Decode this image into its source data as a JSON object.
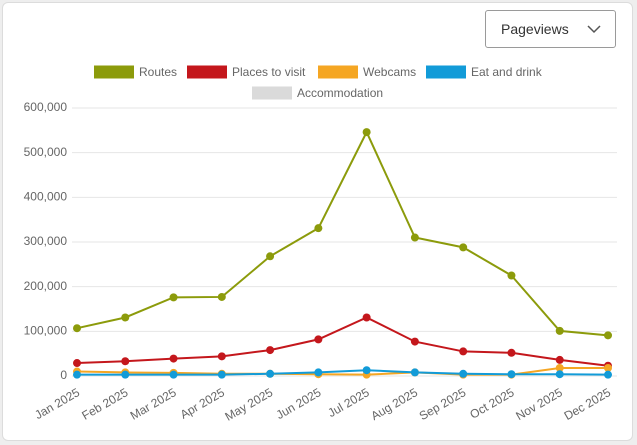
{
  "dropdown": "Pageviews",
  "chart_data": {
    "type": "line",
    "categories": [
      "Jan 2025",
      "Feb 2025",
      "Mar 2025",
      "Apr 2025",
      "May 2025",
      "Jun 2025",
      "Jul 2025",
      "Aug 2025",
      "Sep 2025",
      "Oct 2025",
      "Nov 2025",
      "Dec 2025"
    ],
    "series": [
      {
        "name": "Routes",
        "color": "#8c9b0b",
        "values": [
          107000,
          131000,
          176000,
          177000,
          268000,
          331000,
          546000,
          310000,
          288000,
          225000,
          101000,
          91000
        ]
      },
      {
        "name": "Places to visit",
        "color": "#c4171c",
        "values": [
          29000,
          33000,
          39000,
          44000,
          58000,
          82000,
          131000,
          77000,
          55000,
          52000,
          36000,
          23000
        ]
      },
      {
        "name": "Webcams",
        "color": "#f5a623",
        "values": [
          10000,
          8000,
          7000,
          5000,
          5000,
          4000,
          3000,
          8000,
          3000,
          3000,
          18000,
          18000
        ]
      },
      {
        "name": "Eat and drink",
        "color": "#129bd8",
        "values": [
          3000,
          3000,
          3000,
          3000,
          5000,
          8000,
          13000,
          8000,
          5000,
          4000,
          4000,
          3000
        ]
      },
      {
        "name": "Accommodation",
        "color": "#dadada",
        "hidden": true
      }
    ],
    "ylim": [
      0,
      600000
    ],
    "yticks": [
      0,
      {
        "value": 100000,
        "label": "100,000"
      },
      {
        "value": 200000,
        "label": "200,000"
      },
      {
        "value": 300000,
        "label": "300,000"
      },
      {
        "value": 400000,
        "label": "400,000"
      },
      {
        "value": 500000,
        "label": "500,000"
      },
      {
        "value": 600000,
        "label": "600,000"
      }
    ],
    "grid": true,
    "legend": "top"
  }
}
